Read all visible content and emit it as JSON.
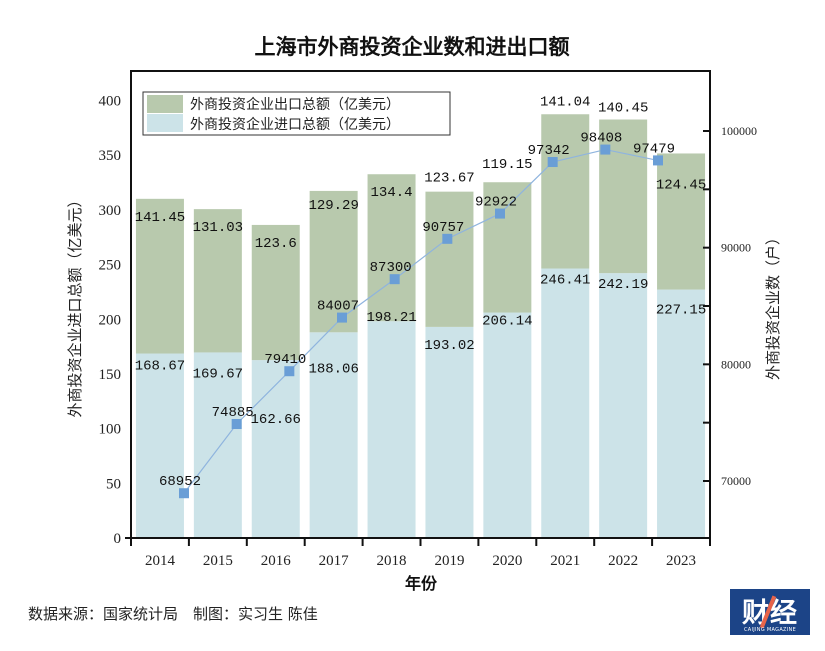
{
  "chart_data": {
    "type": "bar",
    "stacked": true,
    "title": "上海市外商投资企业数和进出口额",
    "xlabel": "年份",
    "ylabel": "外商投资企业进口总额（亿美元）",
    "y2label": "外商投资企业数（户）",
    "categories": [
      "2014",
      "2015",
      "2016",
      "2017",
      "2018",
      "2019",
      "2020",
      "2021",
      "2022",
      "2023"
    ],
    "ylim": [
      0,
      427
    ],
    "yticks": [
      0,
      50,
      100,
      150,
      200,
      250,
      300,
      350,
      400
    ],
    "y2lim": [
      65114,
      105143
    ],
    "y2ticks": [
      70000,
      75000,
      80000,
      85000,
      90000,
      95000,
      100000
    ],
    "y2ticklabels": [
      "70000",
      "",
      "80000",
      "",
      "90000",
      "",
      "100000"
    ],
    "legend_position": "top-left",
    "series": [
      {
        "name": "外商投资企业进口总额（亿美元）",
        "type": "bar",
        "axis": "left",
        "color": "#cce3e8",
        "values": [
          168.67,
          169.67,
          162.66,
          188.06,
          198.21,
          193.02,
          206.14,
          246.41,
          242.19,
          227.15
        ]
      },
      {
        "name": "外商投资企业出口总额（亿美元）",
        "type": "bar",
        "axis": "left",
        "color": "#b8c9ad",
        "values": [
          141.45,
          131.03,
          123.6,
          129.29,
          134.4,
          123.67,
          119.15,
          141.04,
          140.45,
          124.45
        ]
      },
      {
        "name": "外商投资企业数（户）",
        "type": "line",
        "axis": "right",
        "color": "#6a9ed6",
        "values": [
          68952,
          74885,
          79410,
          84007,
          87300,
          90757,
          92922,
          97342,
          98408,
          97479
        ]
      }
    ],
    "legend": [
      {
        "label": "外商投资企业出口总额（亿美元）",
        "color": "#b8c9ad"
      },
      {
        "label": "外商投资企业进口总额（亿美元）",
        "color": "#cce3e8"
      }
    ]
  },
  "footer": {
    "source": "数据来源：国家统计局　制图：实习生 陈佳",
    "logo_text": "财经",
    "logo_subtext": "CAIJING MAGAZINE"
  }
}
